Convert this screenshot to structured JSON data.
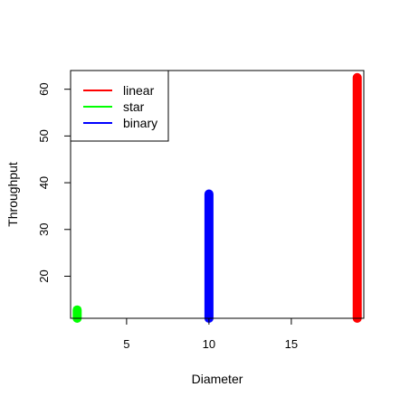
{
  "chart_data": {
    "type": "line",
    "title": "",
    "xlabel": "Diameter",
    "ylabel": "Throughput",
    "xlim": [
      1.6,
      19.4
    ],
    "ylim": [
      11,
      64
    ],
    "xticks": [
      5,
      10,
      15
    ],
    "yticks": [
      20,
      30,
      40,
      50,
      60
    ],
    "grid": false,
    "legend": {
      "placement": "top-left",
      "entries": [
        {
          "name": "linear",
          "color": "#ff0000"
        },
        {
          "name": "star",
          "color": "#00ff00"
        },
        {
          "name": "binary",
          "color": "#0000ff"
        }
      ]
    },
    "series": [
      {
        "name": "star",
        "color": "#00ff00",
        "x": [
          2,
          2
        ],
        "y": [
          11,
          12.8
        ]
      },
      {
        "name": "binary",
        "color": "#0000ff",
        "x": [
          10,
          10
        ],
        "y": [
          11,
          37.6
        ]
      },
      {
        "name": "linear",
        "color": "#ff0000",
        "x": [
          19,
          19
        ],
        "y": [
          11,
          62.5
        ]
      }
    ]
  }
}
